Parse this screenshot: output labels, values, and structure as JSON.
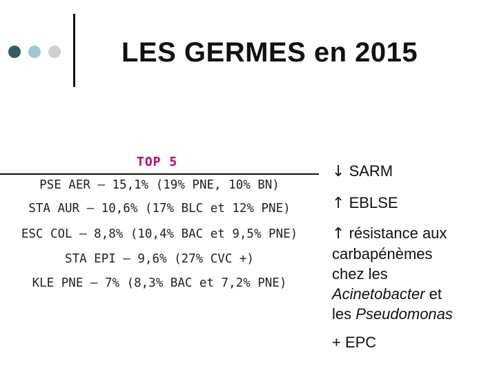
{
  "header": {
    "title": "LES GERMES en 2015"
  },
  "left_panel": {
    "heading": "TOP 5",
    "items": [
      "PSE AER – 15,1% (19% PNE, 10% BN)",
      "STA AUR – 10,6% (17% BLC et 12% PNE)",
      "ESC COL – 8,8% (10,4% BAC et 9,5% PNE)",
      "STA EPI – 9,6% (27% CVC +)",
      "KLE PNE – 7% (8,3% BAC et 7,2% PNE)"
    ]
  },
  "right_panel": {
    "sarm": {
      "arrow": "↓",
      "text": "SARM"
    },
    "eblse": {
      "arrow": "↑",
      "text": "EBLSE"
    },
    "resistance": {
      "arrow": "↑",
      "line1": "résistance aux",
      "line2": "carbapénèmes",
      "line3": "chez les",
      "line4_italic": "Acinetobacter",
      "line4_rest": " et",
      "line5_prefix": "les ",
      "line5_italic": "Pseudomonas"
    },
    "epc": "+ EPC"
  }
}
